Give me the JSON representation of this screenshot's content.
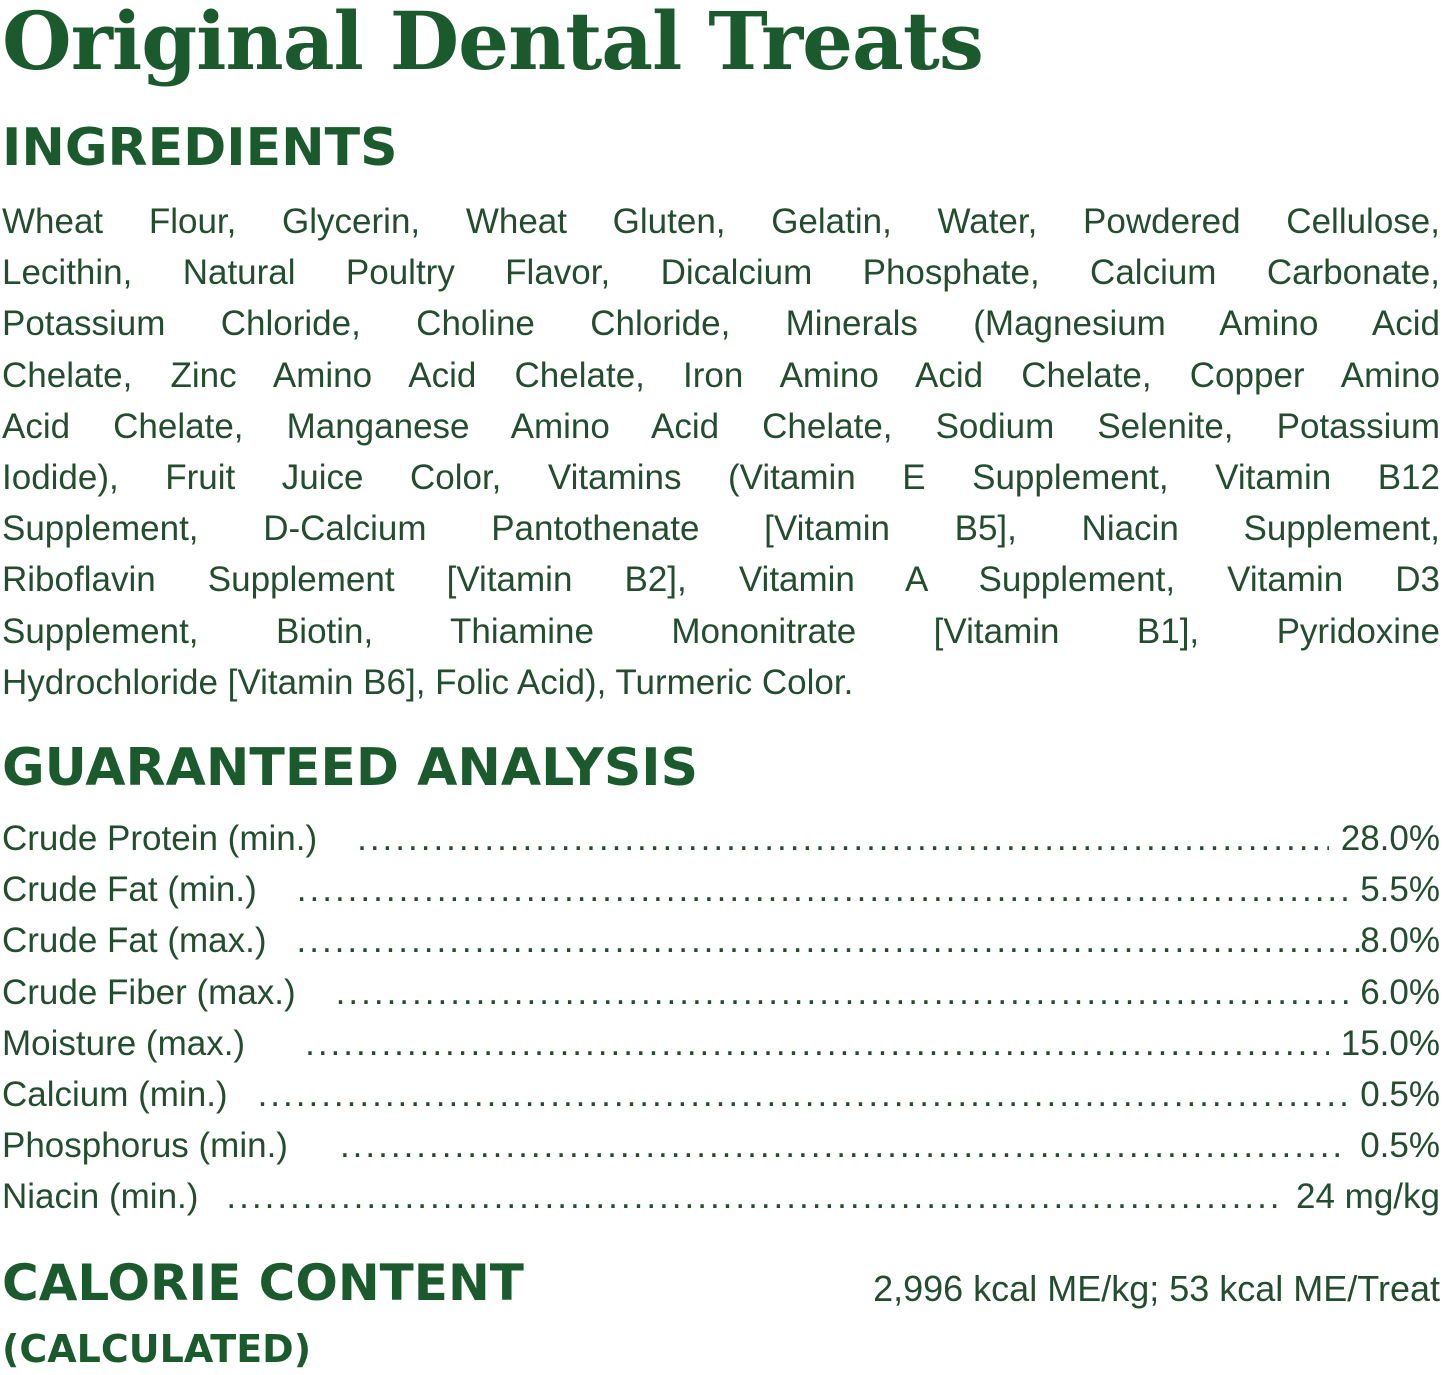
{
  "title": "Original Dental Treats",
  "ingredients": {
    "heading": "INGREDIENTS",
    "lines": [
      "Wheat Flour, Glycerin, Wheat Gluten, Gelatin, Water, Powdered Cellulose,",
      "Lecithin, Natural Poultry Flavor, Dicalcium Phosphate, Calcium Carbonate,",
      "Potassium Chloride, Choline Chloride, Minerals (Magnesium Amino Acid",
      "Chelate, Zinc Amino Acid Chelate, Iron Amino Acid Chelate, Copper Amino",
      "Acid Chelate, Manganese Amino Acid Chelate, Sodium Selenite, Potassium",
      "Iodide), Fruit Juice Color, Vitamins (Vitamin E Supplement, Vitamin B12",
      "Supplement, D-Calcium Pantothenate [Vitamin B5], Niacin Supplement,",
      "Riboflavin Supplement [Vitamin B2], Vitamin A Supplement, Vitamin D3",
      "Supplement, Biotin, Thiamine Mononitrate [Vitamin B1], Pyridoxine",
      "Hydrochloride [Vitamin B6], Folic Acid), Turmeric Color."
    ]
  },
  "analysis": {
    "heading": "GUARANTEED ANALYSIS",
    "rows": [
      {
        "label": "Crude Protein (min.)",
        "value": "28.0%"
      },
      {
        "label": "Crude Fat (min.)",
        "value": "5.5%"
      },
      {
        "label": "Crude Fat (max.)",
        "value": "8.0%"
      },
      {
        "label": "Crude Fiber (max.)",
        "value": "6.0%"
      },
      {
        "label": "Moisture (max.)",
        "value": "15.0%"
      },
      {
        "label": "Calcium (min.)",
        "value": "0.5%"
      },
      {
        "label": "Phosphorus (min.)",
        "value": "0.5%"
      },
      {
        "label": "Niacin (min.)",
        "value": "24 mg/kg"
      }
    ]
  },
  "calorie": {
    "heading": "CALORIE CONTENT",
    "subheading": "(CALCULATED)",
    "value": "2,996 kcal ME/kg; 53 kcal ME/Treat"
  },
  "colors": {
    "heading": "#1b5a2d",
    "body": "#244d2f"
  }
}
